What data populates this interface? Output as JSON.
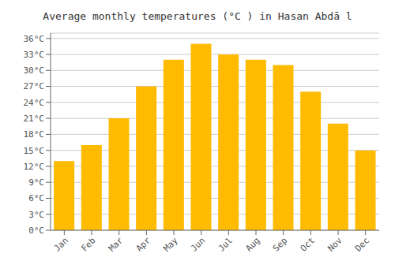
{
  "chart_data": {
    "type": "bar",
    "title": "Average monthly temperatures (°C ) in Hasan Abdā l",
    "categories": [
      "Jan",
      "Feb",
      "Mar",
      "Apr",
      "May",
      "Jun",
      "Jul",
      "Aug",
      "Sep",
      "Oct",
      "Nov",
      "Dec"
    ],
    "values": [
      13,
      16,
      21,
      27,
      32,
      35,
      33,
      32,
      31,
      26,
      20,
      15
    ],
    "color": "#FFBB00",
    "ylim": [
      0,
      37
    ],
    "yticks": [
      {
        "value": 0,
        "label": "0°C"
      },
      {
        "value": 3,
        "label": "3°C"
      },
      {
        "value": 6,
        "label": "6°C"
      },
      {
        "value": 9,
        "label": "9°C"
      },
      {
        "value": 12,
        "label": "12°C"
      },
      {
        "value": 15,
        "label": "15°C"
      },
      {
        "value": 18,
        "label": "18°C"
      },
      {
        "value": 21,
        "label": "21°C"
      },
      {
        "value": 24,
        "label": "24°C"
      },
      {
        "value": 27,
        "label": "27°C"
      },
      {
        "value": 30,
        "label": "30°C"
      },
      {
        "value": 33,
        "label": "33°C"
      },
      {
        "value": 36,
        "label": "36°C"
      }
    ],
    "grid": true
  }
}
